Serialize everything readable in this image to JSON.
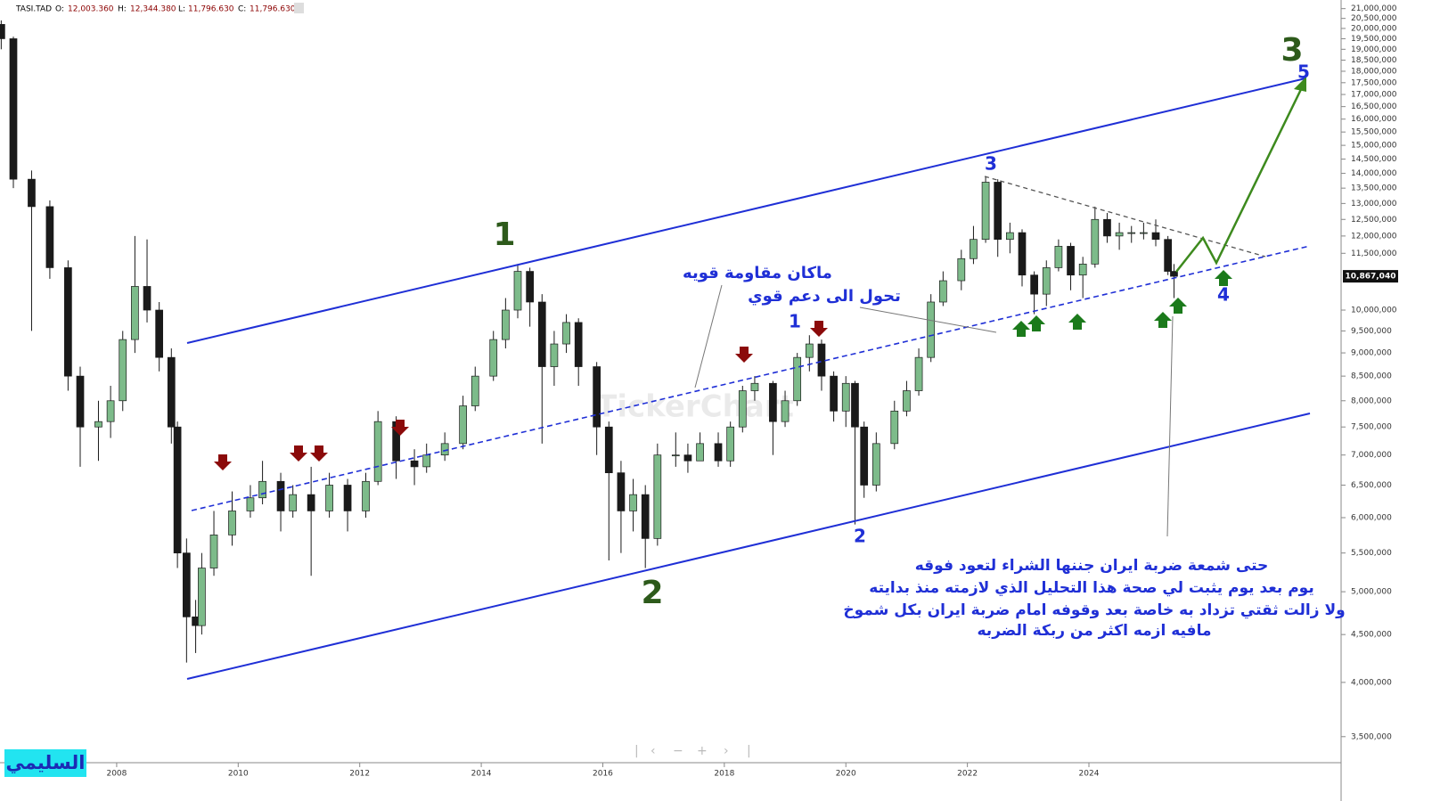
{
  "chart_data": {
    "type": "candlestick",
    "log_scale": true,
    "grid": false,
    "header_fields": [
      {
        "label": "O:",
        "value": "12,003.360"
      },
      {
        "label": "H:",
        "value": "12,344.380"
      },
      {
        "label": "L:",
        "value": "11,796.630"
      },
      {
        "label": "C:",
        "value": "11,796.630"
      }
    ],
    "last_price": {
      "value": 10867040,
      "label": "10,867,040"
    },
    "watermark": "TickerChart",
    "signature": "السليمي",
    "xlim": [
      2006.08,
      2028.15
    ],
    "xticks": [
      2008,
      2010,
      2012,
      2014,
      2016,
      2018,
      2020,
      2022,
      2024
    ],
    "ylim": [
      3290000,
      21450000
    ],
    "yticks": [
      {
        "value": 21000000,
        "label": "21,000,000"
      },
      {
        "value": 20500000,
        "label": "20,500,000"
      },
      {
        "value": 20000000,
        "label": "20,000,000"
      },
      {
        "value": 19500000,
        "label": "19,500,000"
      },
      {
        "value": 19000000,
        "label": "19,000,000"
      },
      {
        "value": 18500000,
        "label": "18,500,000"
      },
      {
        "value": 18000000,
        "label": "18,000,000"
      },
      {
        "value": 17500000,
        "label": "17,500,000"
      },
      {
        "value": 17000000,
        "label": "17,000,000"
      },
      {
        "value": 16500000,
        "label": "16,500,000"
      },
      {
        "value": 16000000,
        "label": "16,000,000"
      },
      {
        "value": 15500000,
        "label": "15,500,000"
      },
      {
        "value": 15000000,
        "label": "15,000,000"
      },
      {
        "value": 14500000,
        "label": "14,500,000"
      },
      {
        "value": 14000000,
        "label": "14,000,000"
      },
      {
        "value": 13500000,
        "label": "13,500,000"
      },
      {
        "value": 13000000,
        "label": "13,000,000"
      },
      {
        "value": 12500000,
        "label": "12,500,000"
      },
      {
        "value": 12000000,
        "label": "12,000,000"
      },
      {
        "value": 11500000,
        "label": "11,500,000"
      },
      {
        "value": 10000000,
        "label": "10,000,000"
      },
      {
        "value": 9500000,
        "label": "9,500,000"
      },
      {
        "value": 9000000,
        "label": "9,000,000"
      },
      {
        "value": 8500000,
        "label": "8,500,000"
      },
      {
        "value": 8000000,
        "label": "8,000,000"
      },
      {
        "value": 7500000,
        "label": "7,500,000"
      },
      {
        "value": 7000000,
        "label": "7,000,000"
      },
      {
        "value": 6500000,
        "label": "6,500,000"
      },
      {
        "value": 6000000,
        "label": "6,000,000"
      },
      {
        "value": 5500000,
        "label": "5,500,000"
      },
      {
        "value": 5000000,
        "label": "5,000,000"
      },
      {
        "value": 4500000,
        "label": "4,500,000"
      },
      {
        "value": 4000000,
        "label": "4,000,000"
      },
      {
        "value": 3500000,
        "label": "3,500,000"
      }
    ],
    "series": [
      {
        "name": "TASI.TAD",
        "up_color": "#7dbb8a",
        "down_color": "#1a1a1a",
        "x": [
          2006.1,
          2006.3,
          2006.6,
          2006.9,
          2007.2,
          2007.4,
          2007.7,
          2007.9,
          2008.1,
          2008.3,
          2008.5,
          2008.7,
          2008.9,
          2009.0,
          2009.15,
          2009.3,
          2009.4,
          2009.6,
          2009.9,
          2010.2,
          2010.4,
          2010.7,
          2010.9,
          2011.2,
          2011.5,
          2011.8,
          2012.1,
          2012.3,
          2012.6,
          2012.9,
          2013.1,
          2013.4,
          2013.7,
          2013.9,
          2014.2,
          2014.4,
          2014.6,
          2014.8,
          2015.0,
          2015.2,
          2015.4,
          2015.6,
          2015.9,
          2016.1,
          2016.3,
          2016.5,
          2016.7,
          2016.9,
          2017.2,
          2017.4,
          2017.6,
          2017.9,
          2018.1,
          2018.3,
          2018.5,
          2018.8,
          2019.0,
          2019.2,
          2019.4,
          2019.6,
          2019.8,
          2020.0,
          2020.15,
          2020.3,
          2020.5,
          2020.8,
          2021.0,
          2021.2,
          2021.4,
          2021.6,
          2021.9,
          2022.1,
          2022.3,
          2022.5,
          2022.7,
          2022.9,
          2023.1,
          2023.3,
          2023.5,
          2023.7,
          2023.9,
          2024.1,
          2024.3,
          2024.5,
          2024.7,
          2024.9,
          2025.1,
          2025.3,
          2025.4
        ],
        "open": [
          20200000,
          19500000,
          13800000,
          12900000,
          11100000,
          8500000,
          7500000,
          7600000,
          8000000,
          9300000,
          10600000,
          10000000,
          8900000,
          7500000,
          5500000,
          4700000,
          4600000,
          5300000,
          5750000,
          6100000,
          6300000,
          6560000,
          6100000,
          6350000,
          6100000,
          6500000,
          6100000,
          6560000,
          7600000,
          6900000,
          6800000,
          7000000,
          7200000,
          7900000,
          8500000,
          9300000,
          10000000,
          11000000,
          10200000,
          8700000,
          9200000,
          9700000,
          8700000,
          7500000,
          6700000,
          6100000,
          6350000,
          5700000,
          7000000,
          7000000,
          6900000,
          7200000,
          6900000,
          7500000,
          8200000,
          8350000,
          7600000,
          8000000,
          8900000,
          9200000,
          8500000,
          7800000,
          8350000,
          7500000,
          6500000,
          7200000,
          7800000,
          8200000,
          8900000,
          10200000,
          10750000,
          11350000,
          11900000,
          13700000,
          11900000,
          12100000,
          10900000,
          10400000,
          11100000,
          11700000,
          10900000,
          11200000,
          12500000,
          12000000,
          12100000,
          12100000,
          12100000,
          11900000,
          11000000
        ],
        "high": [
          20400000,
          19600000,
          14100000,
          13100000,
          11300000,
          8700000,
          8000000,
          8300000,
          9500000,
          12000000,
          11900000,
          10200000,
          9100000,
          7600000,
          5700000,
          4900000,
          5500000,
          6100000,
          6400000,
          6500000,
          6900000,
          6700000,
          6500000,
          6800000,
          6700000,
          6600000,
          6700000,
          7800000,
          7700000,
          7100000,
          7200000,
          7400000,
          8100000,
          8700000,
          9500000,
          10300000,
          11200000,
          11100000,
          10400000,
          9500000,
          9900000,
          9800000,
          8800000,
          7600000,
          6900000,
          6600000,
          6500000,
          7200000,
          7400000,
          7200000,
          7400000,
          7400000,
          7600000,
          8300000,
          8500000,
          8400000,
          8200000,
          9000000,
          9400000,
          9300000,
          8600000,
          8500000,
          8400000,
          7600000,
          7400000,
          8000000,
          8400000,
          9100000,
          10400000,
          11000000,
          11600000,
          12300000,
          13900000,
          13800000,
          12400000,
          12200000,
          11000000,
          11300000,
          11900000,
          11800000,
          11400000,
          12900000,
          12700000,
          12400000,
          12300000,
          12400000,
          12500000,
          12000000,
          11200000
        ],
        "low": [
          19000000,
          13500000,
          9500000,
          10800000,
          8200000,
          6800000,
          6900000,
          7300000,
          7800000,
          9000000,
          9700000,
          8600000,
          7200000,
          5300000,
          4200000,
          4300000,
          4500000,
          5200000,
          5600000,
          6000000,
          6200000,
          5800000,
          6000000,
          5200000,
          6000000,
          5800000,
          6000000,
          6500000,
          6600000,
          6500000,
          6700000,
          6900000,
          7100000,
          7800000,
          8400000,
          9100000,
          9800000,
          9600000,
          7200000,
          8300000,
          9000000,
          8300000,
          7000000,
          5400000,
          5500000,
          5800000,
          5300000,
          5600000,
          6800000,
          6700000,
          6900000,
          6800000,
          6800000,
          7400000,
          8000000,
          7000000,
          7500000,
          7900000,
          8600000,
          8200000,
          7600000,
          7500000,
          5900000,
          6300000,
          6400000,
          7100000,
          7700000,
          8100000,
          8800000,
          10100000,
          10500000,
          11200000,
          11800000,
          11400000,
          11500000,
          10600000,
          9900000,
          10100000,
          11000000,
          10500000,
          10300000,
          11100000,
          11800000,
          11600000,
          11800000,
          11900000,
          11700000,
          10900000,
          10300000
        ],
        "close": [
          19500000,
          13800000,
          12900000,
          11100000,
          8500000,
          7500000,
          7600000,
          8000000,
          9300000,
          10600000,
          10000000,
          8900000,
          7500000,
          5500000,
          4700000,
          4600000,
          5300000,
          5750000,
          6100000,
          6300000,
          6560000,
          6100000,
          6350000,
          6100000,
          6500000,
          6100000,
          6560000,
          7600000,
          6900000,
          6800000,
          7000000,
          7200000,
          7900000,
          8500000,
          9300000,
          10000000,
          11000000,
          10200000,
          8700000,
          9200000,
          9700000,
          8700000,
          7500000,
          6700000,
          6100000,
          6350000,
          5700000,
          7000000,
          7000000,
          6900000,
          7200000,
          6900000,
          7500000,
          8200000,
          8350000,
          7600000,
          8000000,
          8900000,
          9200000,
          8500000,
          7800000,
          8350000,
          7500000,
          6500000,
          7200000,
          7800000,
          8200000,
          8900000,
          10200000,
          10750000,
          11350000,
          11900000,
          13700000,
          11900000,
          12100000,
          10900000,
          10400000,
          11100000,
          11700000,
          10900000,
          11200000,
          12500000,
          12000000,
          12100000,
          12100000,
          12100000,
          11900000,
          11000000,
          10867040
        ]
      }
    ],
    "annotations": [
      {
        "text": "1"
      },
      {
        "text": "2"
      },
      {
        "text": "3"
      },
      {
        "text": "1"
      },
      {
        "text": "2"
      },
      {
        "text": "3"
      },
      {
        "text": "4"
      },
      {
        "text": "5"
      },
      {
        "text": "ماكان مقاومة قويه"
      },
      {
        "text": "تحول الى دعم قوي"
      },
      {
        "text": "حتى شمعة ضربة ايران جننها الشراء لتعود فوقه"
      },
      {
        "text": "يوم بعد يوم يثبت لي صحة هذا التحليل الذي لازمته منذ بدايته"
      },
      {
        "text": "ولا زالت ثقتي تزداد به خاصة بعد وقوفه امام ضربة ايران بكل شموخ"
      },
      {
        "text": "مافيه ازمه اكثر من ربكة الضربه"
      }
    ]
  }
}
